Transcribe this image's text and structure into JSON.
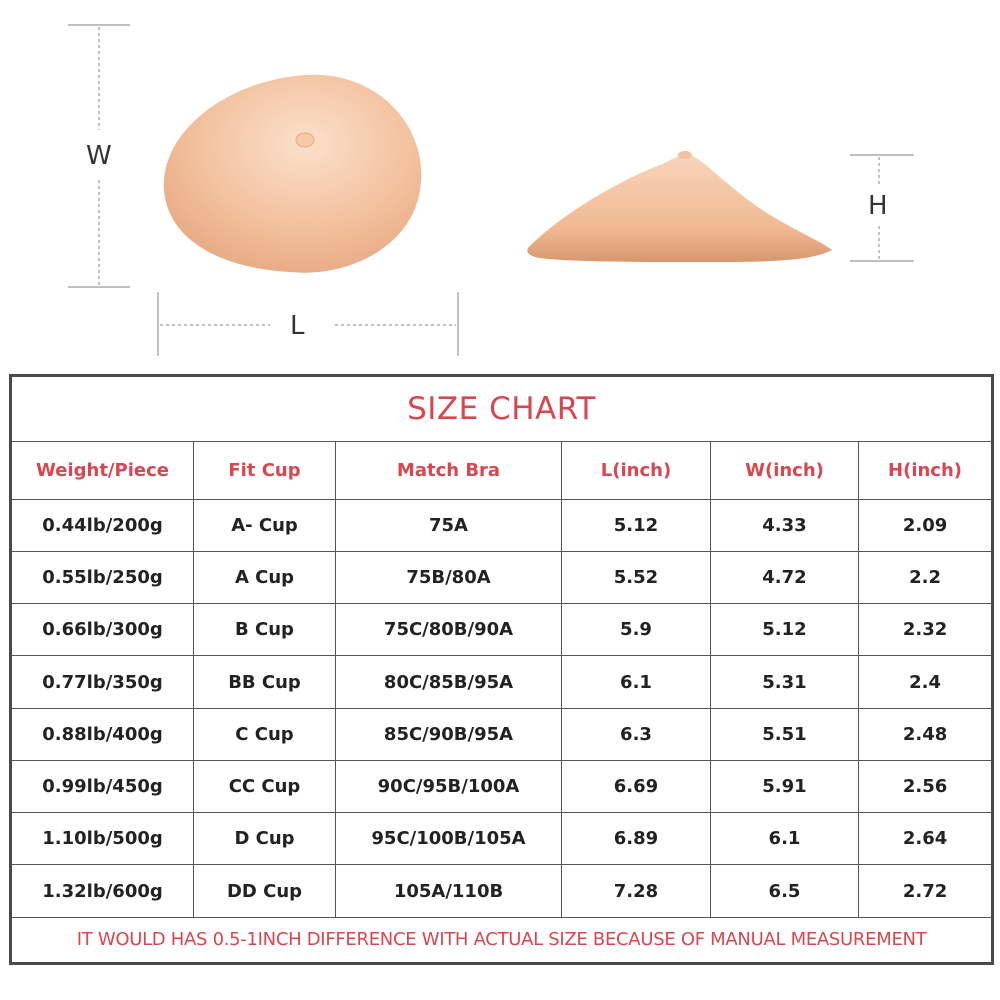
{
  "diagram": {
    "width_label": "W",
    "length_label": "L",
    "height_label": "H",
    "colors": {
      "silicone_light": "#f7d3b8",
      "silicone_mid": "#f0b993",
      "silicone_dark": "#dd9a72",
      "dimension_line": "#999999"
    }
  },
  "table": {
    "title": "SIZE CHART",
    "headers": [
      "Weight/Piece",
      "Fit Cup",
      "Match Bra",
      "L(inch)",
      "W(inch)",
      "H(inch)"
    ],
    "rows": [
      [
        "0.44lb/200g",
        "A- Cup",
        "75A",
        "5.12",
        "4.33",
        "2.09"
      ],
      [
        "0.55lb/250g",
        "A Cup",
        "75B/80A",
        "5.52",
        "4.72",
        "2.2"
      ],
      [
        "0.66lb/300g",
        "B Cup",
        "75C/80B/90A",
        "5.9",
        "5.12",
        "2.32"
      ],
      [
        "0.77lb/350g",
        "BB Cup",
        "80C/85B/95A",
        "6.1",
        "5.31",
        "2.4"
      ],
      [
        "0.88lb/400g",
        "C Cup",
        "85C/90B/95A",
        "6.3",
        "5.51",
        "2.48"
      ],
      [
        "0.99lb/450g",
        "CC Cup",
        "90C/95B/100A",
        "6.69",
        "5.91",
        "2.56"
      ],
      [
        "1.10lb/500g",
        "D Cup",
        "95C/100B/105A",
        "6.89",
        "6.1",
        "2.64"
      ],
      [
        "1.32lb/600g",
        "DD Cup",
        "105A/110B",
        "7.28",
        "6.5",
        "2.72"
      ]
    ],
    "note": "IT WOULD HAS 0.5-1INCH DIFFERENCE WITH ACTUAL SIZE BECAUSE OF MANUAL MEASUREMENT",
    "colors": {
      "accent_red": "#d9464f",
      "text_dark": "#222222",
      "border": "#555555"
    }
  }
}
